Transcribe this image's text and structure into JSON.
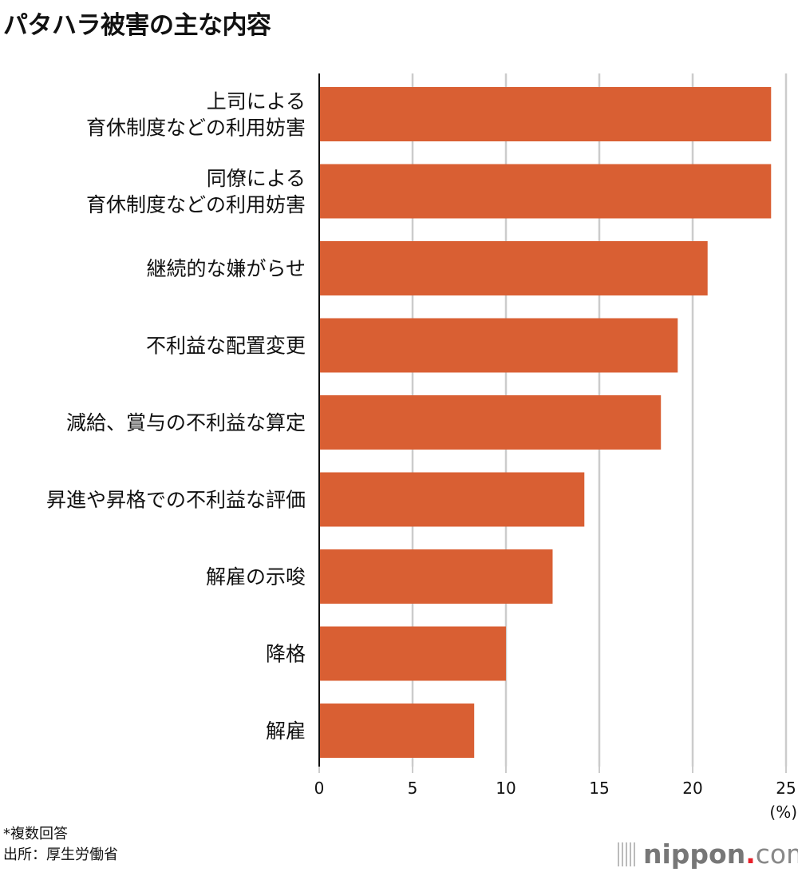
{
  "title": "パタハラ被害の主な内容",
  "chart_data": {
    "type": "bar",
    "orientation": "horizontal",
    "title": "パタハラ被害の主な内容",
    "categories": [
      [
        "上司による",
        "育休制度などの利用妨害"
      ],
      [
        "同僚による",
        "育休制度などの利用妨害"
      ],
      [
        "継続的な嫌がらせ"
      ],
      [
        "不利益な配置変更"
      ],
      [
        "減給、賞与の不利益な算定"
      ],
      [
        "昇進や昇格での不利益な評価"
      ],
      [
        "解雇の示唆"
      ],
      [
        "降格"
      ],
      [
        "解雇"
      ]
    ],
    "values": [
      24.2,
      24.2,
      20.8,
      19.2,
      18.3,
      14.2,
      12.5,
      10.0,
      8.3
    ],
    "xlim": [
      0,
      25
    ],
    "xticks": [
      "0",
      "5",
      "10",
      "15",
      "20",
      "25"
    ],
    "unit_label": "(%)",
    "grid": true,
    "bar_color": "#d95f33"
  },
  "notes": {
    "multi": "*複数回答",
    "source": "出所：厚生労働省"
  },
  "logo": {
    "name": "nippon",
    "dot": ".",
    "tld": "com"
  }
}
